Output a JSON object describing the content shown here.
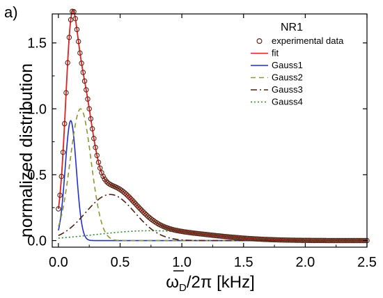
{
  "panel_label": "a)",
  "chart_data": {
    "type": "line",
    "title": "NR1",
    "xlabel_prefix": "ω",
    "xlabel_sub": "D",
    "xlabel_suffix": "/2π [kHz]",
    "ylabel": "normalized distribution",
    "xlim": [
      -0.05,
      2.5
    ],
    "ylim": [
      -0.05,
      1.72
    ],
    "x_ticks": [
      "0.0",
      "0.5",
      "1.0",
      "1.5",
      "2.0",
      "2.5"
    ],
    "y_ticks": [
      "0.0",
      "0.5",
      "1.0",
      "1.5"
    ],
    "legend_position": "top-right",
    "legend": [
      "experimental data",
      "fit",
      "Gauss1",
      "Gauss2",
      "Gauss3",
      "Gauss4"
    ],
    "series_styles": [
      {
        "marker": "open-circle",
        "color": "#5a2a1a"
      },
      {
        "line": "solid",
        "color": "#e02020"
      },
      {
        "line": "solid",
        "color": "#1f2fd0"
      },
      {
        "line": "dashed",
        "color": "#8a9a2a"
      },
      {
        "line": "dash-dot",
        "color": "#4a2010"
      },
      {
        "line": "dotted",
        "color": "#2a8a2a"
      }
    ],
    "components": [
      {
        "amplitude": 0.91,
        "center": 0.1,
        "width": 0.045
      },
      {
        "amplitude": 1.0,
        "center": 0.18,
        "width": 0.085
      },
      {
        "amplitude": 0.35,
        "center": 0.42,
        "width": 0.2
      },
      {
        "amplitude": 0.075,
        "center": 0.75,
        "width": 0.45
      }
    ],
    "experimental_x_step": 0.0125
  }
}
